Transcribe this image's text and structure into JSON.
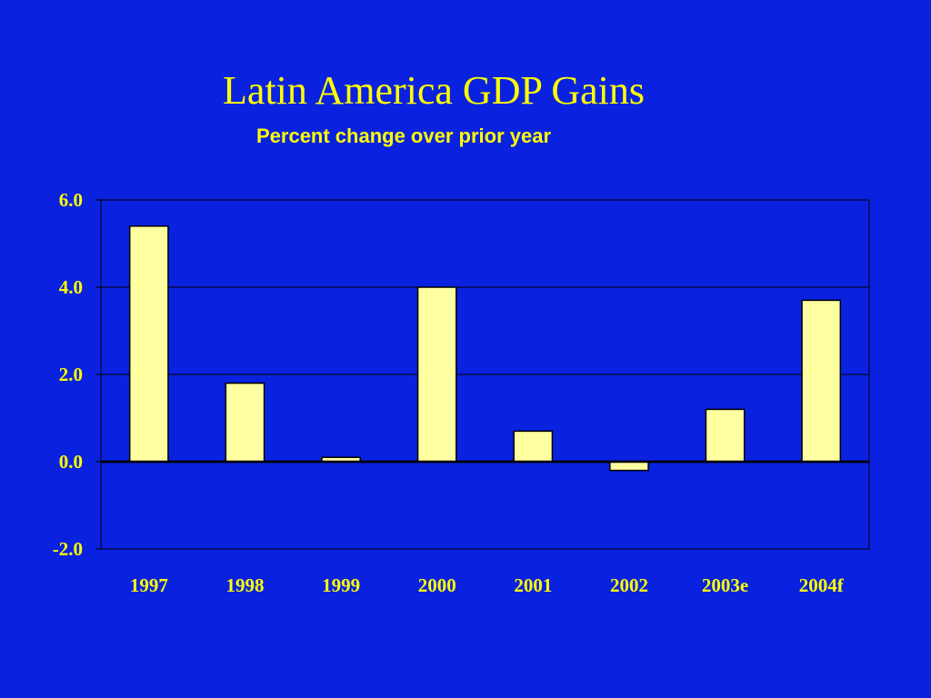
{
  "chart_data": {
    "type": "bar",
    "title": "Latin America GDP Gains",
    "subtitle": "Percent change over prior year",
    "categories": [
      "1997",
      "1998",
      "1999",
      "2000",
      "2001",
      "2002",
      "2003e",
      "2004f"
    ],
    "values": [
      5.4,
      1.8,
      0.1,
      4.0,
      0.7,
      -0.2,
      1.2,
      3.7
    ],
    "ylim": [
      -2.0,
      6.0
    ],
    "yticks": [
      "6.0",
      "4.0",
      "2.0",
      "0.0",
      "-2.0"
    ],
    "ytick_values": [
      6.0,
      4.0,
      2.0,
      0.0,
      -2.0
    ],
    "grid": true,
    "colors": {
      "background": "#0a22e0",
      "bar_fill": "#ffffa0",
      "bar_stroke": "#000000",
      "text": "#ffff00",
      "grid": "#000000"
    }
  }
}
